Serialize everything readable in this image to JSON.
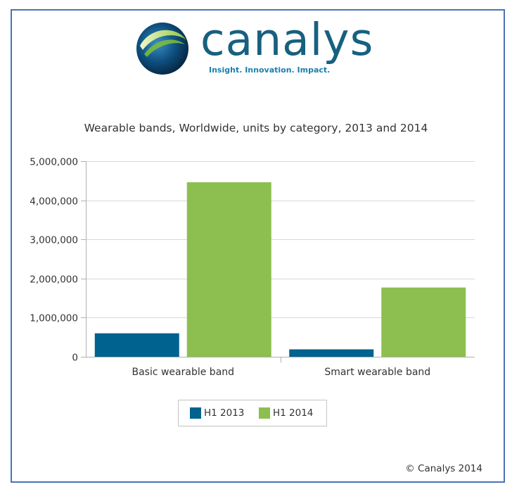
{
  "logo": {
    "wordmark": "canalys",
    "tagline": "Insight. Innovation. Impact."
  },
  "copyright": "© Canalys 2014",
  "chart_data": {
    "type": "bar",
    "title": "Wearable bands, Worldwide, units by category, 2013 and 2014",
    "xlabel": "",
    "ylabel": "",
    "categories": [
      "Basic wearable band",
      "Smart wearable band"
    ],
    "series": [
      {
        "name": "H1 2013",
        "color": "#00628e",
        "values": [
          600000,
          190000
        ]
      },
      {
        "name": "H1 2014",
        "color": "#8cbf4f",
        "values": [
          4460000,
          1770000
        ]
      }
    ],
    "ylim": [
      0,
      5000000
    ],
    "yticks": [
      "0",
      "1,000,000",
      "2,000,000",
      "3,000,000",
      "4,000,000",
      "5,000,000"
    ],
    "ytick_values": [
      0,
      1000000,
      2000000,
      3000000,
      4000000,
      5000000
    ],
    "grid": true,
    "legend_position": "bottom"
  }
}
